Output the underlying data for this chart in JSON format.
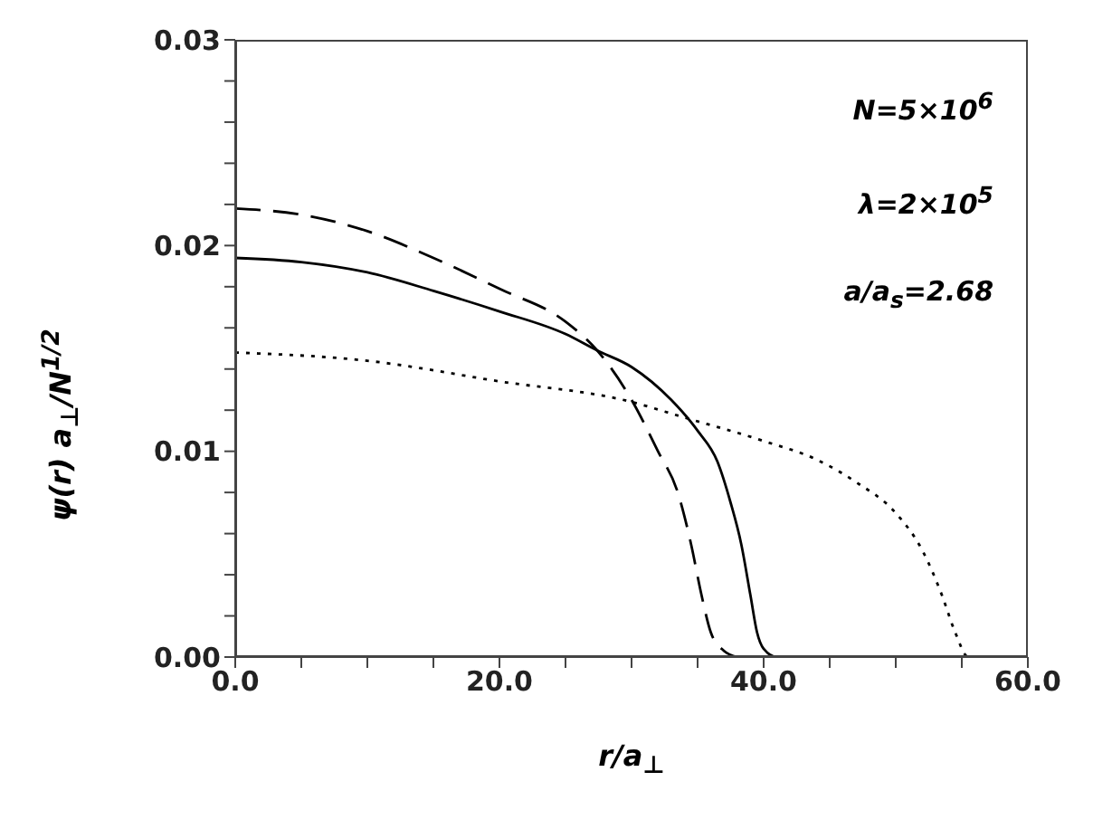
{
  "chart_data": {
    "type": "line",
    "xlabel": "r/a$_{⊥}$",
    "ylabel": "ψ(r) a$_{⊥}$/N$^{1/2}$",
    "xlim": [
      0,
      60
    ],
    "ylim": [
      0,
      0.03
    ],
    "xticks": [
      {
        "value": 0,
        "label": "0.0"
      },
      {
        "value": 5,
        "label": null
      },
      {
        "value": 10,
        "label": null
      },
      {
        "value": 15,
        "label": null
      },
      {
        "value": 20,
        "label": "20.0"
      },
      {
        "value": 25,
        "label": null
      },
      {
        "value": 30,
        "label": null
      },
      {
        "value": 35,
        "label": null
      },
      {
        "value": 40,
        "label": "40.0"
      },
      {
        "value": 45,
        "label": null
      },
      {
        "value": 50,
        "label": null
      },
      {
        "value": 55,
        "label": null
      },
      {
        "value": 60,
        "label": "60.0"
      }
    ],
    "yticks": [
      {
        "value": 0,
        "label": "0.00"
      },
      {
        "value": 0.002,
        "label": null
      },
      {
        "value": 0.004,
        "label": null
      },
      {
        "value": 0.006,
        "label": null
      },
      {
        "value": 0.008,
        "label": null
      },
      {
        "value": 0.01,
        "label": "0.01"
      },
      {
        "value": 0.012,
        "label": null
      },
      {
        "value": 0.014,
        "label": null
      },
      {
        "value": 0.016,
        "label": null
      },
      {
        "value": 0.018,
        "label": null
      },
      {
        "value": 0.02,
        "label": "0.02"
      },
      {
        "value": 0.022,
        "label": null
      },
      {
        "value": 0.024,
        "label": null
      },
      {
        "value": 0.026,
        "label": null
      },
      {
        "value": 0.028,
        "label": null
      },
      {
        "value": 0.03,
        "label": "0.03"
      }
    ],
    "grid": false,
    "legend": false,
    "marker": "none",
    "annotations": [
      "N=5×10$^{6}$",
      "λ=2×10$^{5}$",
      "a/a$_{s}$=2.68"
    ],
    "series": [
      {
        "color": "#000000",
        "line_style": "solid",
        "x": [
          0,
          5,
          10,
          15,
          20,
          25,
          27.4,
          30,
          33,
          35,
          36.5,
          37.5,
          38.3,
          39,
          39.5,
          40,
          41,
          42
        ],
        "values": [
          0.0194,
          0.0192,
          0.0187,
          0.0178,
          0.0168,
          0.0157,
          0.0149,
          0.0141,
          0.0125,
          0.011,
          0.0095,
          0.0075,
          0.0055,
          0.003,
          0.0012,
          0.0004,
          0,
          0
        ]
      },
      {
        "color": "#000000",
        "line_style": "dashed",
        "x": [
          0,
          5,
          10,
          15,
          20,
          25,
          27.4,
          30,
          32,
          33.5,
          34.5,
          35.3,
          36,
          37,
          38
        ],
        "values": [
          0.0218,
          0.0215,
          0.0207,
          0.0194,
          0.0179,
          0.0163,
          0.0149,
          0.0125,
          0.01,
          0.008,
          0.0055,
          0.003,
          0.0012,
          0.0003,
          0
        ]
      },
      {
        "color": "#000000",
        "line_style": "dotted",
        "x": [
          0,
          10,
          20,
          30,
          33.7,
          40,
          44,
          47,
          50,
          52,
          53.5,
          54.5,
          55.5,
          57
        ],
        "values": [
          0.0148,
          0.0144,
          0.0134,
          0.0124,
          0.0117,
          0.0105,
          0.0096,
          0.0085,
          0.007,
          0.0052,
          0.003,
          0.0012,
          0,
          0
        ]
      }
    ]
  }
}
